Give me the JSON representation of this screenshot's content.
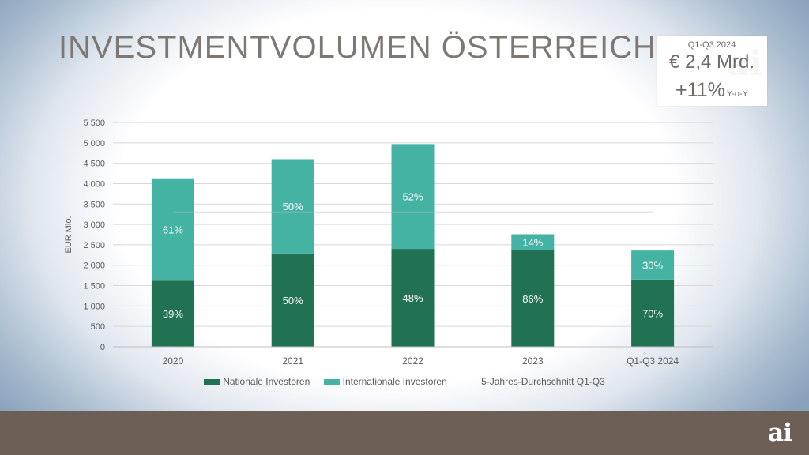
{
  "title": "INVESTMENTVOLUMEN ÖSTERREICH",
  "kpi": {
    "period": "Q1-Q3 2024",
    "amount": "€ 2,4 Mrd.",
    "growth": "+11%",
    "growth_suffix": "Y-o-Y"
  },
  "logo": "ai",
  "colors": {
    "national": "#217153",
    "international": "#44b3a3",
    "average_line": "#b7b7b7",
    "footer": "#6d5f55"
  },
  "chart_data": {
    "type": "bar",
    "stacked": true,
    "categories": [
      "2020",
      "2021",
      "2022",
      "2023",
      "Q1-Q3 2024"
    ],
    "series": [
      {
        "name": "Nationale Investoren",
        "values": [
          1620,
          2290,
          2400,
          2370,
          1650
        ],
        "labels": [
          "39%",
          "50%",
          "48%",
          "86%",
          "70%"
        ]
      },
      {
        "name": "Internationale Investoren",
        "values": [
          2510,
          2310,
          2570,
          390,
          710
        ],
        "labels": [
          "61%",
          "50%",
          "52%",
          "14%",
          "30%"
        ]
      }
    ],
    "reference_line": {
      "name": "5-Jahres-Durchschnitt Q1-Q3",
      "value": 3300
    },
    "ylabel": "EUR Mio.",
    "ylim": [
      0,
      5500
    ],
    "yticks": [
      0,
      500,
      1000,
      1500,
      2000,
      2500,
      3000,
      3500,
      4000,
      4500,
      5000,
      5500
    ],
    "ytick_labels": [
      "0",
      "500",
      "1 000",
      "1 500",
      "2 000",
      "2 500",
      "3 000",
      "3 500",
      "4 000",
      "4 500",
      "5 000",
      "5 500"
    ],
    "grid": true,
    "legend_position": "bottom"
  }
}
